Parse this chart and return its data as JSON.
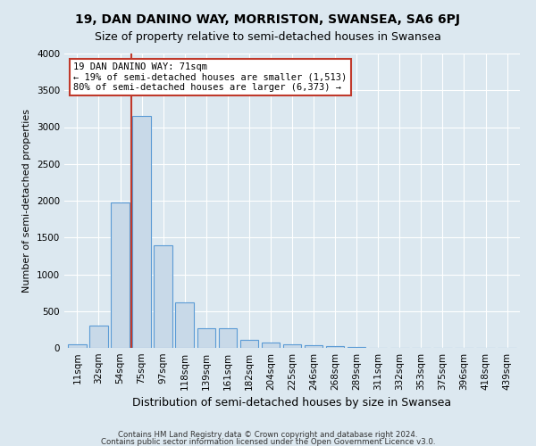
{
  "title": "19, DAN DANINO WAY, MORRISTON, SWANSEA, SA6 6PJ",
  "subtitle": "Size of property relative to semi-detached houses in Swansea",
  "xlabel": "Distribution of semi-detached houses by size in Swansea",
  "ylabel": "Number of semi-detached properties",
  "footnote1": "Contains HM Land Registry data © Crown copyright and database right 2024.",
  "footnote2": "Contains public sector information licensed under the Open Government Licence v3.0.",
  "categories": [
    "11sqm",
    "32sqm",
    "54sqm",
    "75sqm",
    "97sqm",
    "118sqm",
    "139sqm",
    "161sqm",
    "182sqm",
    "204sqm",
    "225sqm",
    "246sqm",
    "268sqm",
    "289sqm",
    "311sqm",
    "332sqm",
    "353sqm",
    "375sqm",
    "396sqm",
    "418sqm",
    "439sqm"
  ],
  "values": [
    50,
    300,
    1980,
    3150,
    1400,
    620,
    270,
    270,
    110,
    70,
    50,
    40,
    20,
    10,
    5,
    3,
    2,
    1,
    1,
    1,
    1
  ],
  "bar_color": "#c8d9e8",
  "bar_edge_color": "#5b9bd5",
  "vline_x_index": 3,
  "vline_color": "#c0392b",
  "annotation_text": "19 DAN DANINO WAY: 71sqm\n← 19% of semi-detached houses are smaller (1,513)\n80% of semi-detached houses are larger (6,373) →",
  "annotation_box_color": "#ffffff",
  "annotation_box_edge": "#c0392b",
  "bg_color": "#dce8f0",
  "plot_bg_color": "#dce8f0",
  "ylim": [
    0,
    4000
  ],
  "yticks": [
    0,
    500,
    1000,
    1500,
    2000,
    2500,
    3000,
    3500,
    4000
  ],
  "grid_color": "#ffffff",
  "title_fontsize": 10,
  "subtitle_fontsize": 9,
  "ylabel_fontsize": 8,
  "xlabel_fontsize": 9,
  "tick_fontsize": 7.5,
  "annotation_fontsize": 7.5
}
